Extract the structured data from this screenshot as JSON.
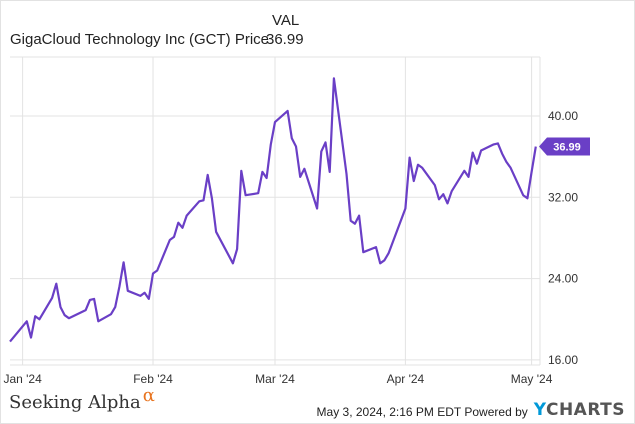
{
  "header": {
    "column_label": "VAL",
    "series_label": "GigaCloud Technology Inc (GCT) Price",
    "series_value": "36.99"
  },
  "colors": {
    "line": "#6a3fc6",
    "grid": "#e3e3e3",
    "last_label_bg": "#6a3fc6",
    "brand_alpha": "#e8731e",
    "ycharts_y": "#0099d8"
  },
  "chart_data": {
    "type": "line",
    "title": "",
    "xlabel": "",
    "ylabel": "",
    "x_tick_labels": [
      "Jan '24",
      "Feb '24",
      "Mar '24",
      "Apr '24",
      "May '24"
    ],
    "x_tick_dates": [
      "2024-01-01",
      "2024-02-01",
      "2024-03-01",
      "2024-04-01",
      "2024-05-01"
    ],
    "y_ticks": [
      16.0,
      24.0,
      32.0,
      40.0
    ],
    "y_tick_labels": [
      "16.00",
      "24.00",
      "32.00",
      "40.00"
    ],
    "ylim": [
      15.5,
      45.8
    ],
    "xlim": [
      "2023-12-29",
      "2024-05-03"
    ],
    "grid": true,
    "legend": "none",
    "last_value_label": "36.99",
    "series": [
      {
        "name": "GigaCloud Technology Inc (GCT) Price",
        "x": [
          "2023-12-29",
          "2024-01-02",
          "2024-01-03",
          "2024-01-04",
          "2024-01-05",
          "2024-01-08",
          "2024-01-09",
          "2024-01-10",
          "2024-01-11",
          "2024-01-12",
          "2024-01-16",
          "2024-01-17",
          "2024-01-18",
          "2024-01-19",
          "2024-01-22",
          "2024-01-23",
          "2024-01-24",
          "2024-01-25",
          "2024-01-26",
          "2024-01-29",
          "2024-01-30",
          "2024-01-31",
          "2024-02-01",
          "2024-02-02",
          "2024-02-05",
          "2024-02-06",
          "2024-02-07",
          "2024-02-08",
          "2024-02-09",
          "2024-02-12",
          "2024-02-13",
          "2024-02-14",
          "2024-02-15",
          "2024-02-16",
          "2024-02-20",
          "2024-02-21",
          "2024-02-22",
          "2024-02-23",
          "2024-02-26",
          "2024-02-27",
          "2024-02-28",
          "2024-02-29",
          "2024-03-01",
          "2024-03-04",
          "2024-03-05",
          "2024-03-06",
          "2024-03-07",
          "2024-03-08",
          "2024-03-11",
          "2024-03-12",
          "2024-03-13",
          "2024-03-14",
          "2024-03-15",
          "2024-03-18",
          "2024-03-19",
          "2024-03-20",
          "2024-03-21",
          "2024-03-22",
          "2024-03-25",
          "2024-03-26",
          "2024-03-27",
          "2024-03-28",
          "2024-04-01",
          "2024-04-02",
          "2024-04-03",
          "2024-04-04",
          "2024-04-05",
          "2024-04-08",
          "2024-04-09",
          "2024-04-10",
          "2024-04-11",
          "2024-04-12",
          "2024-04-15",
          "2024-04-16",
          "2024-04-17",
          "2024-04-18",
          "2024-04-19",
          "2024-04-22",
          "2024-04-23",
          "2024-04-24",
          "2024-04-25",
          "2024-04-26",
          "2024-04-29",
          "2024-04-30",
          "2024-05-01",
          "2024-05-02"
        ],
        "values": [
          17.8,
          19.8,
          18.2,
          20.3,
          20.0,
          22.1,
          23.5,
          21.2,
          20.4,
          20.1,
          20.9,
          21.9,
          22.0,
          19.8,
          20.5,
          21.2,
          23.2,
          25.6,
          22.8,
          22.3,
          22.6,
          22.0,
          24.5,
          24.8,
          27.8,
          28.1,
          29.5,
          29.0,
          30.2,
          31.6,
          31.7,
          34.2,
          31.9,
          28.6,
          25.5,
          26.9,
          34.6,
          32.2,
          32.4,
          34.5,
          33.9,
          37.2,
          39.4,
          40.5,
          37.8,
          37.0,
          34.0,
          34.8,
          30.9,
          36.5,
          37.4,
          34.5,
          43.7,
          34.3,
          29.7,
          29.4,
          30.2,
          26.6,
          27.1,
          25.5,
          25.8,
          26.5,
          30.9,
          35.9,
          33.6,
          35.2,
          34.9,
          33.2,
          31.8,
          32.3,
          31.4,
          32.6,
          34.6,
          34.0,
          36.4,
          35.3,
          36.6,
          37.2,
          37.3,
          36.3,
          35.5,
          34.9,
          32.2,
          31.9,
          34.5,
          36.99
        ]
      }
    ]
  },
  "branding": {
    "left_text": "Seeking Alpha",
    "left_symbol": "α",
    "footer_text": "May 3, 2024, 2:16 PM EDT Powered by",
    "ycharts_y": "Y",
    "ycharts_rest": "CHARTS"
  }
}
